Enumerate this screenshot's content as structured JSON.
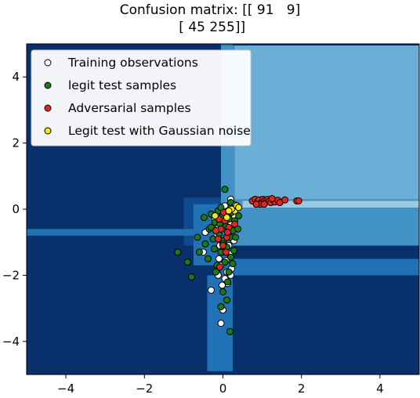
{
  "chart_data": {
    "type": "scatter",
    "title": "Confusion matrix: [[ 91   9]\n [ 45 255]]",
    "title_lines": [
      "Confusion matrix: [[ 91   9]",
      " [ 45 255]]"
    ],
    "xlabel": "",
    "ylabel": "",
    "xlim": [
      -5,
      5
    ],
    "ylim": [
      -5,
      5
    ],
    "xticks": [
      -4,
      -2,
      0,
      2,
      4
    ],
    "yticks": [
      -4,
      -2,
      0,
      2,
      4
    ],
    "xtick_labels": [
      "−4",
      "−2",
      "0",
      "2",
      "4"
    ],
    "ytick_labels": [
      "−4",
      "−2",
      "0",
      "2",
      "4"
    ],
    "grid": false,
    "legend_position": "top-left",
    "background": "decision regions (blue shades)",
    "region_colors": {
      "darkest": "#08306b",
      "dark": "#0d4a8f",
      "medium_dark": "#2171b5",
      "medium": "#4292c6",
      "light": "#6baed6",
      "lightest": "#9ecae1"
    },
    "series": [
      {
        "name": "Training observations",
        "color": "#ffffff",
        "points": [
          [
            -0.02,
            -0.1
          ],
          [
            0.1,
            -0.3
          ],
          [
            -0.1,
            -0.5
          ],
          [
            0.2,
            -0.4
          ],
          [
            0.05,
            0.1
          ],
          [
            -0.15,
            -0.8
          ],
          [
            0.15,
            -1.1
          ],
          [
            0.0,
            -1.3
          ],
          [
            -0.05,
            -1.7
          ],
          [
            0.1,
            -1.9
          ],
          [
            0.2,
            -2.0
          ],
          [
            -0.1,
            -1.5
          ],
          [
            0.05,
            -2.1
          ],
          [
            0.12,
            -2.25
          ],
          [
            -0.3,
            -2.45
          ],
          [
            0.0,
            -3.05
          ],
          [
            -0.05,
            -3.45
          ],
          [
            0.2,
            0.3
          ],
          [
            0.25,
            0.15
          ],
          [
            0.3,
            -0.2
          ],
          [
            -0.2,
            -0.3
          ],
          [
            -0.45,
            -0.7
          ],
          [
            -0.5,
            -1.3
          ],
          [
            0.15,
            -0.7
          ],
          [
            0.08,
            -1.55
          ],
          [
            -0.12,
            -2.0
          ],
          [
            0.22,
            -1.8
          ],
          [
            0.0,
            -0.45
          ],
          [
            0.18,
            -1.35
          ],
          [
            -0.08,
            -1.1
          ],
          [
            0.28,
            -0.95
          ],
          [
            -0.02,
            -2.3
          ]
        ]
      },
      {
        "name": "legit test samples",
        "color": "#1a7a1a",
        "points": [
          [
            -1.15,
            -1.3
          ],
          [
            -0.9,
            -1.6
          ],
          [
            -0.8,
            -2.05
          ],
          [
            -0.65,
            -0.85
          ],
          [
            -0.6,
            -1.3
          ],
          [
            -0.48,
            -0.25
          ],
          [
            -0.45,
            -1.05
          ],
          [
            -0.38,
            -1.5
          ],
          [
            -0.35,
            -0.6
          ],
          [
            -0.3,
            -0.15
          ],
          [
            -0.25,
            -0.9
          ],
          [
            -0.22,
            -1.2
          ],
          [
            -0.2,
            -0.4
          ],
          [
            -0.15,
            -1.7
          ],
          [
            -0.12,
            -0.05
          ],
          [
            -0.1,
            -0.75
          ],
          [
            -0.05,
            -1.3
          ],
          [
            0.0,
            -0.2
          ],
          [
            0.02,
            -0.95
          ],
          [
            0.05,
            -1.6
          ],
          [
            0.08,
            -0.5
          ],
          [
            0.1,
            -1.15
          ],
          [
            0.12,
            -2.2
          ],
          [
            0.15,
            -0.3
          ],
          [
            0.18,
            -0.85
          ],
          [
            0.2,
            -1.45
          ],
          [
            0.22,
            -0.1
          ],
          [
            0.25,
            -0.65
          ],
          [
            0.28,
            -1.25
          ],
          [
            0.3,
            -0.35
          ],
          [
            0.32,
            -0.85
          ],
          [
            0.35,
            0.1
          ],
          [
            0.38,
            -0.6
          ],
          [
            0.05,
            0.6
          ],
          [
            0.2,
            0.2
          ],
          [
            -0.18,
            -1.9
          ],
          [
            0.0,
            -2.5
          ],
          [
            0.1,
            -2.75
          ],
          [
            -0.05,
            -2.95
          ],
          [
            0.18,
            -3.7
          ],
          [
            -0.3,
            -0.55
          ],
          [
            0.15,
            -1.9
          ],
          [
            -0.05,
            0.05
          ],
          [
            0.25,
            -1.65
          ],
          [
            0.4,
            -0.2
          ],
          [
            -0.08,
            -0.45
          ],
          [
            0.12,
            -0.05
          ],
          [
            0.0,
            -1.05
          ]
        ]
      },
      {
        "name": "Adversarial samples",
        "color": "#e0281e",
        "points": [
          [
            0.75,
            0.25
          ],
          [
            0.82,
            0.3
          ],
          [
            0.88,
            0.22
          ],
          [
            0.92,
            0.28
          ],
          [
            0.98,
            0.2
          ],
          [
            1.02,
            0.3
          ],
          [
            1.06,
            0.25
          ],
          [
            1.1,
            0.22
          ],
          [
            1.14,
            0.3
          ],
          [
            1.18,
            0.25
          ],
          [
            1.22,
            0.2
          ],
          [
            1.28,
            0.28
          ],
          [
            1.33,
            0.22
          ],
          [
            1.4,
            0.27
          ],
          [
            1.45,
            0.2
          ],
          [
            1.58,
            0.28
          ],
          [
            1.88,
            0.25
          ],
          [
            1.93,
            0.25
          ],
          [
            0.95,
            0.15
          ],
          [
            1.05,
            0.15
          ],
          [
            1.25,
            0.32
          ],
          [
            0.85,
            0.15
          ],
          [
            -0.05,
            -0.6
          ],
          [
            0.05,
            -0.35
          ],
          [
            0.1,
            -0.85
          ],
          [
            0.0,
            -1.1
          ],
          [
            -0.1,
            -0.3
          ],
          [
            0.15,
            -0.55
          ],
          [
            0.08,
            -1.3
          ],
          [
            -0.12,
            -0.9
          ],
          [
            0.1,
            -0.15
          ],
          [
            -0.08,
            -1.75
          ],
          [
            0.12,
            -0.7
          ],
          [
            0.02,
            -0.1
          ],
          [
            0.3,
            -0.45
          ],
          [
            -0.18,
            -0.65
          ]
        ]
      },
      {
        "name": "Legit test with Gaussian noise",
        "color": "#f2e81e",
        "points": [
          [
            0.28,
            0.08
          ],
          [
            0.32,
            0.12
          ],
          [
            0.25,
            0.02
          ],
          [
            0.3,
            -0.05
          ],
          [
            0.35,
            0.1
          ],
          [
            0.22,
            0.0
          ],
          [
            0.4,
            0.05
          ],
          [
            0.1,
            -0.25
          ],
          [
            -0.2,
            -0.2
          ],
          [
            0.15,
            -0.05
          ]
        ]
      }
    ]
  }
}
